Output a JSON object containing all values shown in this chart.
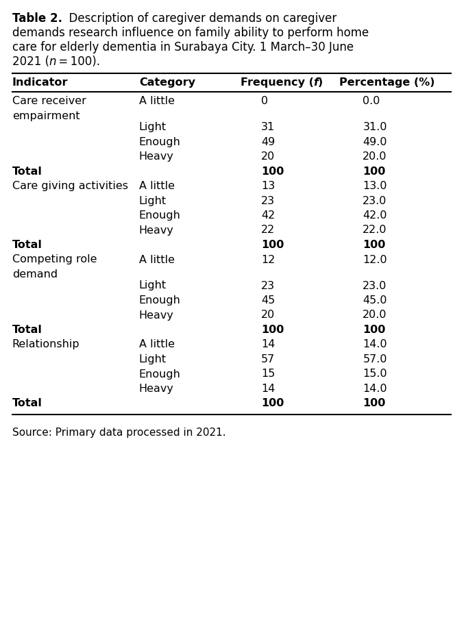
{
  "title_bold": "Table 2.",
  "title_rest": "  Description of caregiver demands on caregiver demands research influence on family ability to perform home care for elderly dementia in Surabaya City. 1 March–30 June 2021 (",
  "title_italic": "n",
  "title_end": " = 100).",
  "source": "Source: Primary data processed in 2021.",
  "col_headers": [
    "Indicator",
    "Category",
    "Frequency (f)",
    "Percentage (%)"
  ],
  "rows": [
    {
      "indicator": "Care receiver\nempairment",
      "category": "A little",
      "frequency": "0",
      "percentage": "0.0",
      "is_total": false,
      "indicator_bold": false
    },
    {
      "indicator": "",
      "category": "Light",
      "frequency": "31",
      "percentage": "31.0",
      "is_total": false,
      "indicator_bold": false
    },
    {
      "indicator": "",
      "category": "Enough",
      "frequency": "49",
      "percentage": "49.0",
      "is_total": false,
      "indicator_bold": false
    },
    {
      "indicator": "",
      "category": "Heavy",
      "frequency": "20",
      "percentage": "20.0",
      "is_total": false,
      "indicator_bold": false
    },
    {
      "indicator": "Total",
      "category": "",
      "frequency": "100",
      "percentage": "100",
      "is_total": true,
      "indicator_bold": false
    },
    {
      "indicator": "Care giving activities",
      "category": "A little",
      "frequency": "13",
      "percentage": "13.0",
      "is_total": false,
      "indicator_bold": false
    },
    {
      "indicator": "",
      "category": "Light",
      "frequency": "23",
      "percentage": "23.0",
      "is_total": false,
      "indicator_bold": false
    },
    {
      "indicator": "",
      "category": "Enough",
      "frequency": "42",
      "percentage": "42.0",
      "is_total": false,
      "indicator_bold": false
    },
    {
      "indicator": "",
      "category": "Heavy",
      "frequency": "22",
      "percentage": "22.0",
      "is_total": false,
      "indicator_bold": false
    },
    {
      "indicator": "Total",
      "category": "",
      "frequency": "100",
      "percentage": "100",
      "is_total": true,
      "indicator_bold": false
    },
    {
      "indicator": "Competing role\ndemand",
      "category": "A little",
      "frequency": "12",
      "percentage": "12.0",
      "is_total": false,
      "indicator_bold": false
    },
    {
      "indicator": "",
      "category": "Light",
      "frequency": "23",
      "percentage": "23.0",
      "is_total": false,
      "indicator_bold": false
    },
    {
      "indicator": "",
      "category": "Enough",
      "frequency": "45",
      "percentage": "45.0",
      "is_total": false,
      "indicator_bold": false
    },
    {
      "indicator": "",
      "category": "Heavy",
      "frequency": "20",
      "percentage": "20.0",
      "is_total": false,
      "indicator_bold": false
    },
    {
      "indicator": "Total",
      "category": "",
      "frequency": "100",
      "percentage": "100",
      "is_total": true,
      "indicator_bold": false
    },
    {
      "indicator": "Relationship",
      "category": "A little",
      "frequency": "14",
      "percentage": "14.0",
      "is_total": false,
      "indicator_bold": false
    },
    {
      "indicator": "",
      "category": "Light",
      "frequency": "57",
      "percentage": "57.0",
      "is_total": false,
      "indicator_bold": false
    },
    {
      "indicator": "",
      "category": "Enough",
      "frequency": "15",
      "percentage": "15.0",
      "is_total": false,
      "indicator_bold": false
    },
    {
      "indicator": "",
      "category": "Heavy",
      "frequency": "14",
      "percentage": "14.0",
      "is_total": false,
      "indicator_bold": false
    },
    {
      "indicator": "Total",
      "category": "",
      "frequency": "100",
      "percentage": "100",
      "is_total": true,
      "indicator_bold": false
    }
  ],
  "bg_color": "#ffffff",
  "text_color": "#000000",
  "font_size": 11.5,
  "header_font_size": 11.5,
  "title_font_size": 12.0
}
